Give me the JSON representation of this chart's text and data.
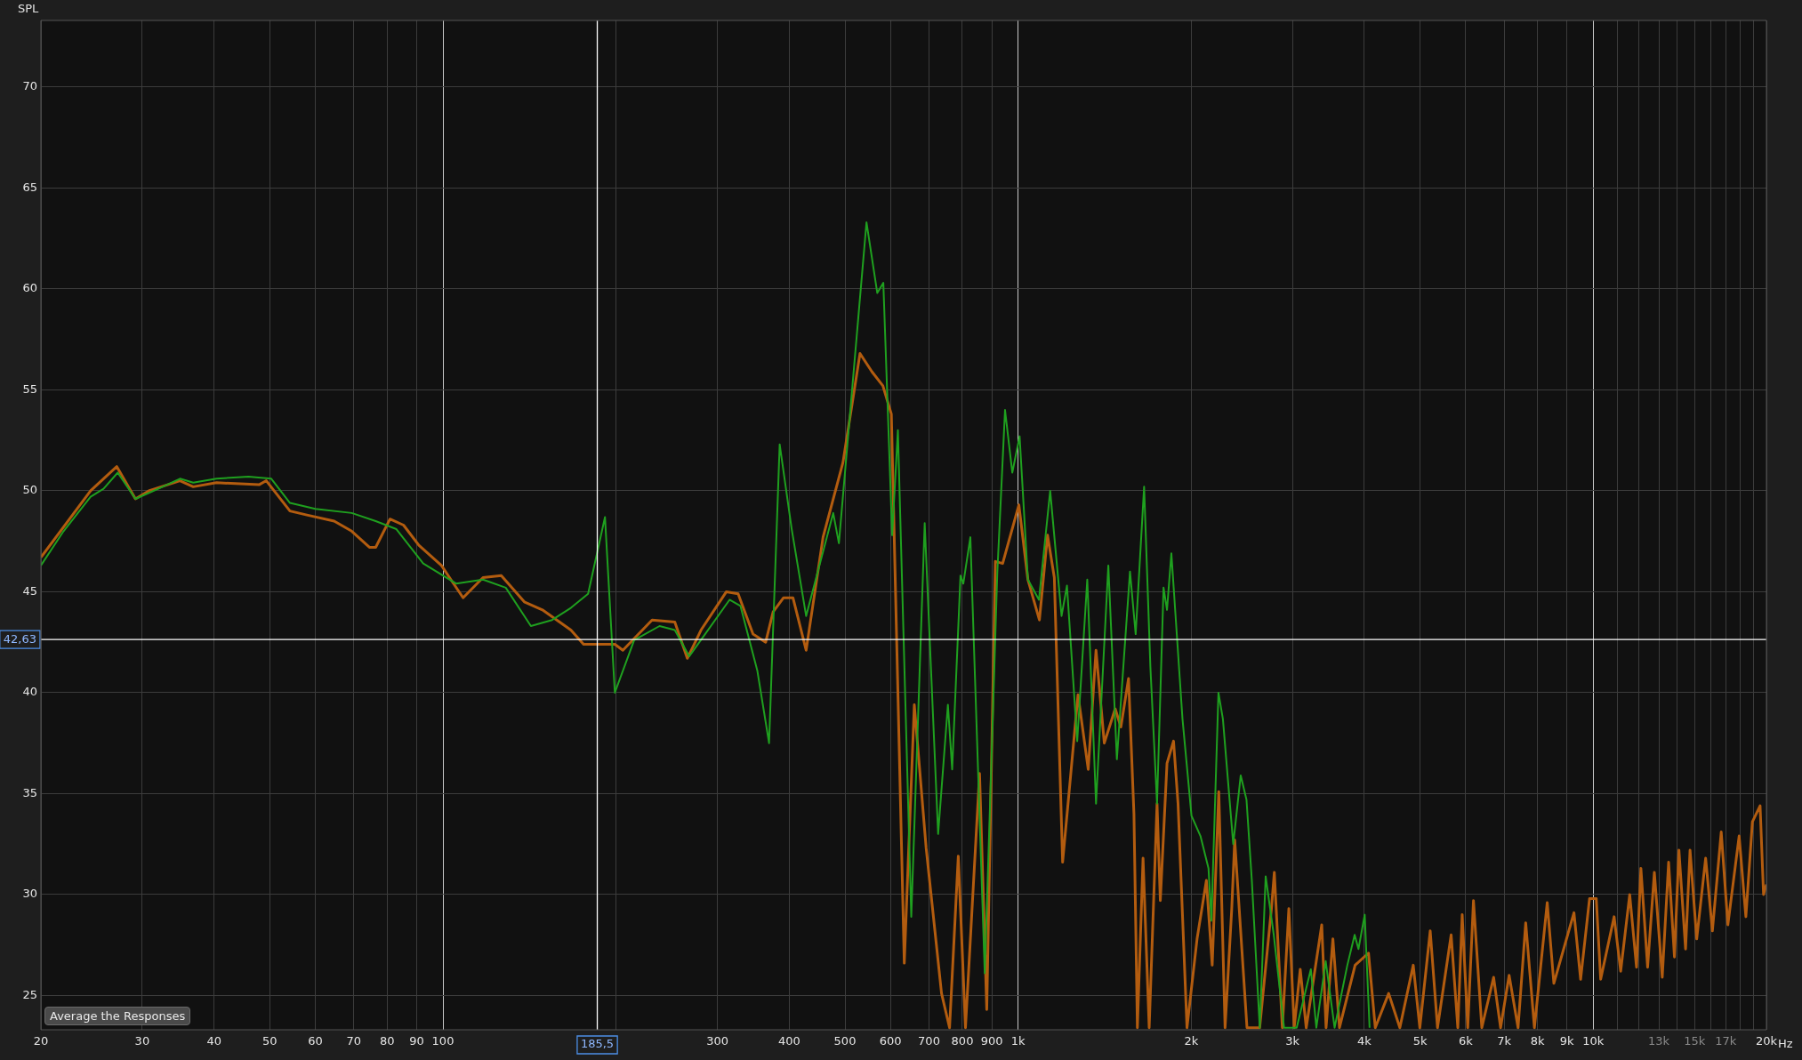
{
  "chart_data": {
    "type": "line",
    "ylabel": "SPL",
    "log": "x",
    "grid": true,
    "legend": false,
    "marker": "none",
    "line_style": "solid",
    "xlim": [
      20,
      20000
    ],
    "ylim": [
      23.3,
      73.3
    ],
    "xticks": [
      20,
      30,
      40,
      50,
      60,
      70,
      80,
      90,
      100,
      {
        "value": 200,
        "label": null
      },
      300,
      400,
      500,
      600,
      700,
      800,
      900,
      {
        "value": 1000,
        "label": "1k"
      },
      {
        "value": 2000,
        "label": "2k"
      },
      {
        "value": 3000,
        "label": "3k"
      },
      {
        "value": 4000,
        "label": "4k"
      },
      {
        "value": 5000,
        "label": "5k"
      },
      {
        "value": 6000,
        "label": "6k"
      },
      {
        "value": 7000,
        "label": "7k"
      },
      {
        "value": 8000,
        "label": "8k"
      },
      {
        "value": 9000,
        "label": "9k"
      },
      {
        "value": 10000,
        "label": "10k"
      },
      {
        "value": 11000,
        "label": null
      },
      {
        "value": 12000,
        "label": null
      },
      {
        "value": 13000,
        "label": "13k"
      },
      {
        "value": 14000,
        "label": null
      },
      {
        "value": 15000,
        "label": "15k"
      },
      {
        "value": 16000,
        "label": null
      },
      {
        "value": 17000,
        "label": "17k"
      },
      {
        "value": 18000,
        "label": null
      },
      {
        "value": 19000,
        "label": null
      },
      {
        "value": 20000,
        "label": "20k"
      }
    ],
    "xlabel": "Hz",
    "yticks": [
      25,
      30,
      35,
      40,
      45,
      50,
      55,
      60,
      65,
      70
    ],
    "ref_lines": [
      {
        "axis": "y",
        "value": 42.63,
        "label": "42,63",
        "color": "#ffffff"
      },
      {
        "axis": "x",
        "value": 185.5,
        "label": "185,5",
        "color": "#ffffff"
      }
    ],
    "annotations": [
      "Average the Responses"
    ],
    "series": [
      {
        "color": "#1fa01f",
        "x": [
          20,
          21.9,
          24.4,
          25.7,
          27.2,
          29.2,
          32,
          34.9,
          36.8,
          40.4,
          45.9,
          50.3,
          54.2,
          60,
          69.4,
          76.4,
          83,
          92.4,
          105.5,
          117.4,
          128.6,
          142.2,
          154.8,
          166.9,
          178.8,
          191.3,
          199,
          215,
          238,
          253,
          268,
          284,
          315,
          329,
          352,
          369,
          385,
          404,
          428,
          477,
          488,
          545,
          569,
          583,
          604,
          618,
          652,
          688,
          726,
          755,
          768,
          794,
          803,
          826,
          875,
          920,
          949,
          977,
          1006,
          1040,
          1087,
          1137,
          1190,
          1216,
          1267,
          1319,
          1366,
          1435,
          1485,
          1565,
          1601,
          1656,
          1698,
          1744,
          1790,
          1815,
          1847,
          1931,
          2002,
          2075,
          2143,
          2168,
          2230,
          2270,
          2366,
          2438,
          2495,
          2549,
          2631,
          2694,
          2783,
          2900,
          3050,
          3228,
          3300,
          3426,
          3550,
          3736,
          3847,
          3906,
          4005,
          4084
        ],
        "values": [
          46.3,
          48.0,
          49.7,
          50.1,
          50.9,
          49.6,
          50.1,
          50.6,
          50.4,
          50.6,
          50.7,
          50.6,
          49.4,
          49.1,
          48.9,
          48.5,
          48.1,
          46.4,
          45.4,
          45.6,
          45.2,
          43.3,
          43.6,
          44.2,
          44.9,
          48.7,
          40.0,
          42.6,
          43.3,
          43.1,
          41.8,
          42.8,
          44.6,
          44.3,
          41.1,
          37.5,
          52.3,
          48.1,
          43.8,
          48.9,
          47.4,
          63.3,
          59.8,
          60.3,
          47.8,
          53.0,
          28.9,
          48.4,
          33.0,
          39.4,
          36.2,
          45.8,
          45.4,
          47.7,
          26.1,
          45.9,
          54.0,
          50.9,
          52.7,
          45.6,
          44.6,
          50.0,
          43.8,
          45.3,
          37.6,
          45.6,
          34.5,
          46.3,
          36.7,
          46.0,
          42.9,
          50.2,
          41.3,
          34.5,
          45.2,
          44.1,
          46.9,
          38.7,
          33.9,
          32.9,
          31.3,
          28.7,
          40.0,
          38.7,
          32.5,
          35.9,
          34.7,
          30.7,
          23.4,
          30.9,
          28.0,
          23.4,
          23.4,
          26.3,
          23.4,
          26.7,
          23.4,
          26.5,
          28.0,
          27.3,
          29.0,
          23.4
        ]
      },
      {
        "color": "#b35c0f",
        "x": [
          20,
          24.4,
          27.1,
          29.2,
          30.8,
          34.9,
          36.8,
          40.4,
          47.9,
          49.3,
          54.2,
          58,
          64.7,
          69.4,
          74.5,
          76.4,
          80.9,
          85.4,
          90.8,
          99.4,
          108.4,
          117.4,
          126.3,
          138.5,
          148.9,
          166.9,
          175.6,
          185.7,
          199,
          205.5,
          231,
          253,
          266,
          281,
          311,
          326,
          346,
          364,
          375,
          391,
          406,
          428,
          458,
          496,
          531,
          557,
          582,
          602,
          634,
          660,
          692,
          736,
          760,
          787,
          810,
          857,
          882,
          913,
          940,
          1003,
          1040,
          1089,
          1125,
          1156,
          1195,
          1235,
          1271,
          1324,
          1366,
          1412,
          1475,
          1509,
          1556,
          1590,
          1612,
          1649,
          1690,
          1744,
          1767,
          1815,
          1863,
          1897,
          1966,
          2047,
          2125,
          2175,
          2233,
          2290,
          2352,
          2380,
          2500,
          2630,
          2757,
          2789,
          2880,
          2956,
          3020,
          3094,
          3169,
          3372,
          3431,
          3526,
          3620,
          3854,
          4066,
          4178,
          4408,
          4610,
          4864,
          4994,
          5206,
          5360,
          5661,
          5814,
          5917,
          6050,
          6190,
          6400,
          6710,
          6900,
          7140,
          7400,
          7630,
          7900,
          8316,
          8540,
          9256,
          9506,
          9852,
          10120,
          10300,
          10870,
          11160,
          11570,
          11890,
          12100,
          12430,
          12770,
          13180,
          13520,
          13840,
          14090,
          14470,
          14730,
          15130,
          15680,
          16110,
          16690,
          17140,
          17930,
          18420,
          18910,
          19500,
          19770,
          20000
        ],
        "values": [
          46.7,
          50.0,
          51.2,
          49.6,
          50.0,
          50.5,
          50.2,
          50.4,
          50.3,
          50.5,
          49.0,
          48.8,
          48.5,
          48.0,
          47.2,
          47.2,
          48.6,
          48.3,
          47.3,
          46.3,
          44.7,
          45.7,
          45.8,
          44.5,
          44.1,
          43.1,
          42.4,
          42.4,
          42.4,
          42.1,
          43.6,
          43.5,
          41.7,
          43.1,
          45.0,
          44.9,
          42.9,
          42.5,
          44.0,
          44.7,
          44.7,
          42.1,
          47.7,
          51.4,
          56.8,
          55.9,
          55.2,
          53.8,
          26.6,
          39.4,
          32.3,
          25.1,
          23.4,
          31.9,
          23.4,
          36.0,
          24.3,
          46.5,
          46.4,
          49.3,
          45.6,
          43.6,
          47.8,
          45.7,
          31.6,
          36.0,
          39.9,
          36.2,
          42.1,
          37.5,
          39.2,
          38.3,
          40.7,
          34.0,
          23.4,
          31.8,
          23.4,
          34.5,
          29.7,
          36.5,
          37.6,
          34.5,
          23.4,
          27.8,
          30.7,
          26.5,
          35.1,
          23.4,
          29.3,
          32.7,
          23.4,
          23.4,
          29.3,
          31.1,
          23.4,
          29.3,
          23.4,
          26.3,
          23.4,
          28.5,
          23.4,
          27.8,
          23.4,
          26.5,
          27.1,
          23.4,
          25.1,
          23.4,
          26.5,
          23.4,
          28.2,
          23.4,
          28.0,
          23.4,
          29.0,
          23.4,
          29.7,
          23.4,
          25.9,
          23.4,
          26.0,
          23.4,
          28.6,
          23.4,
          29.6,
          25.6,
          29.1,
          25.8,
          29.8,
          29.8,
          25.8,
          28.9,
          26.2,
          30.0,
          26.4,
          31.3,
          26.4,
          31.1,
          25.9,
          31.6,
          26.9,
          32.2,
          27.3,
          32.2,
          27.8,
          31.8,
          28.2,
          33.1,
          28.5,
          32.9,
          28.9,
          33.6,
          34.4,
          30.0,
          30.5
        ]
      }
    ]
  }
}
